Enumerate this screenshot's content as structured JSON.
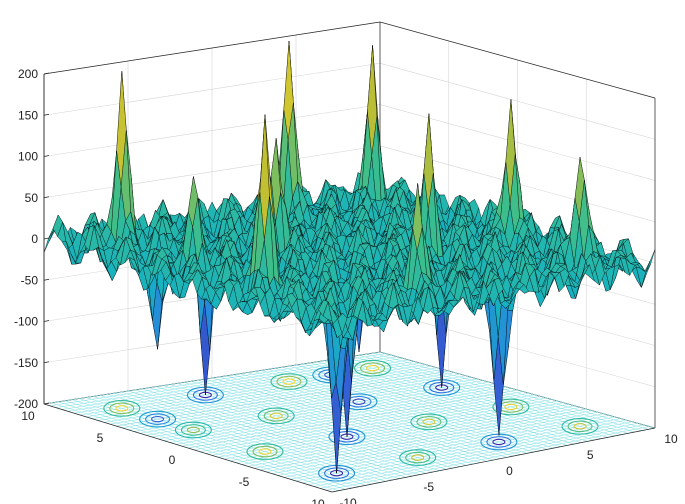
{
  "chart_data": {
    "type": "surface3d",
    "title": "",
    "xlabel": "",
    "ylabel": "",
    "zlabel": "",
    "xlim": [
      -10,
      10
    ],
    "ylim": [
      -10,
      10
    ],
    "zlim": [
      -200,
      200
    ],
    "x_ticks": [
      "-10",
      "-5",
      "0",
      "5",
      "10"
    ],
    "y_ticks": [
      "-10",
      "-5",
      "0",
      "5",
      "10"
    ],
    "z_ticks": [
      "-200",
      "-150",
      "-100",
      "-50",
      "0",
      "50",
      "100",
      "150",
      "200"
    ],
    "grid": true,
    "colormap": "parula",
    "contour_projection_on_floor": true,
    "peaks": [
      {
        "x": -7.5,
        "y": 7.5,
        "z": 195
      },
      {
        "x": 2.5,
        "y": 7.5,
        "z": 215
      },
      {
        "x": -7.5,
        "y": -2.5,
        "z": 190
      },
      {
        "x": 7.5,
        "y": 7.5,
        "z": 190
      },
      {
        "x": -2.5,
        "y": 2.5,
        "z": 160
      },
      {
        "x": 7.5,
        "y": -2.5,
        "z": 185
      },
      {
        "x": -7.5,
        "y": 2.5,
        "z": 95
      },
      {
        "x": 2.5,
        "y": -2.5,
        "z": 150
      },
      {
        "x": -2.5,
        "y": -7.5,
        "z": 130
      },
      {
        "x": 7.5,
        "y": -7.5,
        "z": 140
      }
    ],
    "troughs": [
      {
        "x": -2.5,
        "y": 7.5,
        "z": -200
      },
      {
        "x": 7.5,
        "y": 2.5,
        "z": -200
      },
      {
        "x": -7.5,
        "y": -7.5,
        "z": -200
      },
      {
        "x": 2.5,
        "y": -7.5,
        "z": -200
      },
      {
        "x": -2.5,
        "y": -2.5,
        "z": -200
      },
      {
        "x": 2.5,
        "y": 2.5,
        "z": -170
      },
      {
        "x": -7.5,
        "y": 5,
        "z": -130
      },
      {
        "x": 5,
        "y": 7.5,
        "z": -140
      }
    ],
    "colors": {
      "low": "#3e26a8",
      "mid": "#16b2c1",
      "high": "#f9d72d",
      "edge": "#000000"
    }
  }
}
